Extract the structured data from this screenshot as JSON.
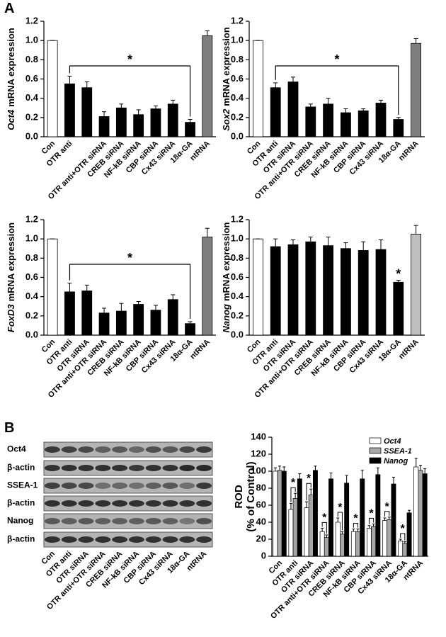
{
  "panels": [
    "A",
    "B"
  ],
  "blot": {
    "rows": [
      "Oct4",
      "β-actin",
      "SSEA-1",
      "β-actin",
      "Nanog",
      "β-actin"
    ],
    "lanes": [
      "Con",
      "OTR  anti",
      "OTR  siRNA",
      "OTR anti+OTR siRNA",
      "CREB siRNA",
      "NF-kB siRNA",
      "CBP siRNA",
      "Cx43 siRNA",
      "18α-GA",
      "ntRNA"
    ]
  },
  "chart_data": [
    {
      "type": "bar",
      "ylabel_gene": "Oct4",
      "ylabel": "mRNA expression",
      "categories": [
        "Con",
        "OTR  anti",
        null,
        "OTR anti+OTR siRNA",
        "CREB siRNA",
        "NF-kB siRNA",
        "CBP siRNA",
        "Cx43 siRNA",
        "18α-GA",
        "ntRNA"
      ],
      "values": [
        1.0,
        0.55,
        0.51,
        0.21,
        0.3,
        0.23,
        0.29,
        0.34,
        0.15,
        1.05
      ],
      "errors": [
        0,
        0.08,
        0.06,
        0.05,
        0.04,
        0.05,
        0.03,
        0.04,
        0.03,
        0.05
      ],
      "colors": [
        "#ffffff",
        "#000000",
        "#000000",
        "#000000",
        "#000000",
        "#000000",
        "#000000",
        "#000000",
        "#000000",
        "#7f7f7f"
      ],
      "ylim": [
        0,
        1.2
      ],
      "yticks": [
        {
          "value": 0,
          "label": "0.0"
        },
        {
          "value": 0.2,
          "label": "0.2"
        },
        {
          "value": 0.4,
          "label": "0.4"
        },
        {
          "value": 0.6,
          "label": "0.6"
        },
        {
          "value": 0.8,
          "label": "0.8"
        },
        {
          "value": 1.0,
          "label": "1.0"
        },
        {
          "value": 1.2,
          "label": "1.2"
        }
      ],
      "annotation": "*"
    },
    {
      "type": "bar",
      "ylabel_gene": "Sox2",
      "ylabel": "mRNA expression",
      "categories": [
        "Con",
        "OTR  anti",
        "OTR  siRNA",
        "OTR anti+OTR siRNA",
        "CREB siRNA",
        "NF-kB siRNA",
        "CBP siRNA",
        "Cx43 siRNA",
        "18α-GA",
        "ntRNA"
      ],
      "values": [
        1.0,
        0.51,
        0.57,
        0.31,
        0.34,
        0.25,
        0.27,
        0.35,
        0.18,
        0.97
      ],
      "errors": [
        0,
        0.05,
        0.05,
        0.03,
        0.06,
        0.04,
        0.02,
        0.03,
        0.02,
        0.05
      ],
      "colors": [
        "#ffffff",
        "#000000",
        "#000000",
        "#000000",
        "#000000",
        "#000000",
        "#000000",
        "#000000",
        "#000000",
        "#7f7f7f"
      ],
      "ylim": [
        0,
        1.2
      ],
      "yticks": [
        {
          "value": 0,
          "label": "0.0"
        },
        {
          "value": 0.2,
          "label": "0.2"
        },
        {
          "value": 0.4,
          "label": "0.4"
        },
        {
          "value": 0.6,
          "label": "0.6"
        },
        {
          "value": 0.8,
          "label": "0.8"
        },
        {
          "value": 1.0,
          "label": "1.0"
        },
        {
          "value": 1.2,
          "label": "1.2"
        }
      ],
      "annotation": "*"
    },
    {
      "type": "bar",
      "ylabel_gene": "FoxD3",
      "ylabel": "mRNA expression",
      "categories": [
        "Con",
        "OTR  anti",
        "OTR  siRNA",
        "OTR anti+OTR siRNA",
        "CREB siRNA",
        "NF-kB siRNA",
        "CBP siRNA",
        "Cx43 siRNA",
        "18α-GA",
        "ntRNA"
      ],
      "values": [
        1.0,
        0.45,
        0.46,
        0.23,
        0.25,
        0.32,
        0.26,
        0.37,
        0.12,
        1.02
      ],
      "errors": [
        0,
        0.09,
        0.06,
        0.05,
        0.08,
        0.03,
        0.05,
        0.05,
        0.02,
        0.09
      ],
      "colors": [
        "#ffffff",
        "#000000",
        "#000000",
        "#000000",
        "#000000",
        "#000000",
        "#000000",
        "#000000",
        "#000000",
        "#7f7f7f"
      ],
      "ylim": [
        0,
        1.2
      ],
      "yticks": [
        {
          "value": 0,
          "label": "0.0"
        },
        {
          "value": 0.2,
          "label": "0.2"
        },
        {
          "value": 0.4,
          "label": "0.4"
        },
        {
          "value": 0.6,
          "label": "0.6"
        },
        {
          "value": 0.8,
          "label": "0.8"
        },
        {
          "value": 1.0,
          "label": "1.0"
        },
        {
          "value": 1.2,
          "label": "1.2"
        }
      ],
      "annotation": "*"
    },
    {
      "type": "bar",
      "ylabel_gene": "Nanog",
      "ylabel": "mRNA expression",
      "categories": [
        "Con",
        "OTR  anti",
        "OTR  siRNA",
        "OTR anti+OTR siRNA",
        "CREB siRNA",
        "NF-kB siRNA",
        "CBP siRNA",
        "Cx43 siRNA",
        "18α-GA",
        "ntRNA"
      ],
      "values": [
        1.0,
        0.92,
        0.94,
        0.97,
        0.93,
        0.9,
        0.88,
        0.89,
        0.55,
        1.05
      ],
      "errors": [
        0,
        0.08,
        0.05,
        0.05,
        0.09,
        0.06,
        0.09,
        0.1,
        0.02,
        0.09
      ],
      "colors": [
        "#ffffff",
        "#000000",
        "#000000",
        "#000000",
        "#000000",
        "#000000",
        "#000000",
        "#000000",
        "#000000",
        "#bfbfbf"
      ],
      "ylim": [
        0,
        1.2
      ],
      "yticks": [
        {
          "value": 0,
          "label": "0.0"
        },
        {
          "value": 0.2,
          "label": "0.2"
        },
        {
          "value": 0.4,
          "label": "0.4"
        },
        {
          "value": 0.6,
          "label": "0.6"
        },
        {
          "value": 0.8,
          "label": "0.8"
        },
        {
          "value": 1.0,
          "label": "1.0"
        },
        {
          "value": 1.2,
          "label": "1.2"
        }
      ],
      "annotation": "*"
    },
    {
      "type": "grouped_bar",
      "ylabel": [
        "ROD",
        "(% of Control)"
      ],
      "categories": [
        "Con",
        "OTR  anti",
        "OTR  siRNA",
        "OTR anti+OTR siRNA",
        "CREB siRNA",
        "NF-kB siRNA",
        "CBP siRNA",
        "Cx43 siRNA",
        "18α-GA",
        "ntRNA"
      ],
      "series": [
        {
          "name": "Oct4",
          "color": "#ffffff",
          "values": [
            100,
            55,
            57,
            29,
            40,
            29,
            33,
            42,
            18,
            105
          ],
          "errors": [
            4,
            7,
            7,
            4,
            5,
            3,
            3,
            3,
            2,
            10
          ]
        },
        {
          "name": "SSEA-1",
          "color": "#a6a6a6",
          "values": [
            101,
            68,
            72,
            22,
            26,
            29,
            35,
            43,
            15,
            101
          ],
          "errors": [
            5,
            6,
            7,
            3,
            3,
            3,
            3,
            3,
            2,
            6
          ]
        },
        {
          "name": "Nanog",
          "color": "#000000",
          "values": [
            100,
            91,
            101,
            91,
            86,
            91,
            96,
            85,
            51,
            97
          ],
          "errors": [
            5,
            6,
            5,
            7,
            9,
            10,
            8,
            8,
            3,
            6
          ]
        }
      ],
      "ylim": [
        0,
        140
      ],
      "yticks": [
        0,
        20,
        40,
        60,
        80,
        100,
        120,
        140
      ],
      "annotation": "*"
    }
  ]
}
